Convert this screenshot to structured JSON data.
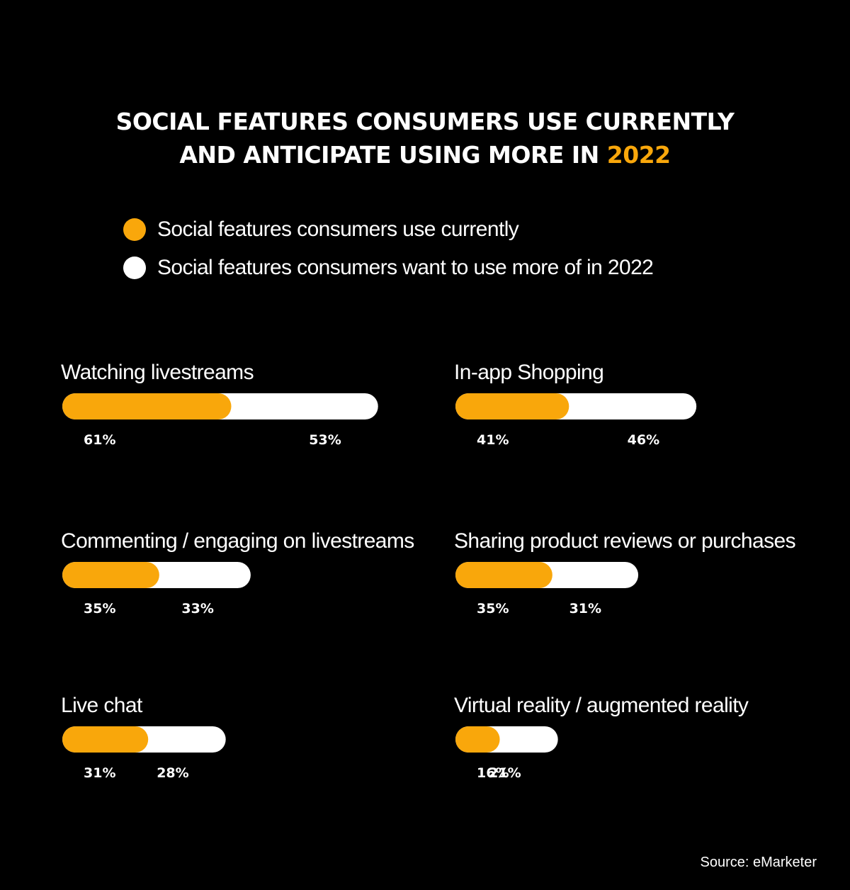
{
  "title": {
    "line1": "SOCIAL FEATURES CONSUMERS USE CURRENTLY",
    "line2_prefix": "AND ANTICIPATE USING MORE IN ",
    "line2_accent": "2022"
  },
  "colors": {
    "background": "#000000",
    "current": "#F9A70B",
    "want_more": "#FFFFFF",
    "text": "#FFFFFF"
  },
  "source": "Source: eMarketer",
  "chart_data": {
    "type": "bar",
    "orientation": "horizontal",
    "stacked": true,
    "legend_position": "top",
    "grid": false,
    "categories": [
      "Watching livestreams",
      "In-app Shopping",
      "Commenting / engaging on livestreams",
      "Sharing product reviews or purchases",
      "Live chat",
      "Virtual reality / augmented reality"
    ],
    "series": [
      {
        "name": "Social features consumers use currently",
        "color": "#F9A70B",
        "values": [
          61,
          41,
          35,
          35,
          31,
          16
        ],
        "labels": [
          "61%",
          "41%",
          "35%",
          "35%",
          "31%",
          "16%"
        ]
      },
      {
        "name": "Social features consumers want to use more of in 2022",
        "color": "#FFFFFF",
        "values": [
          53,
          46,
          33,
          31,
          28,
          21
        ],
        "labels": [
          "53%",
          "46%",
          "33%",
          "31%",
          "28%",
          "21%"
        ]
      }
    ],
    "unit": "%"
  }
}
